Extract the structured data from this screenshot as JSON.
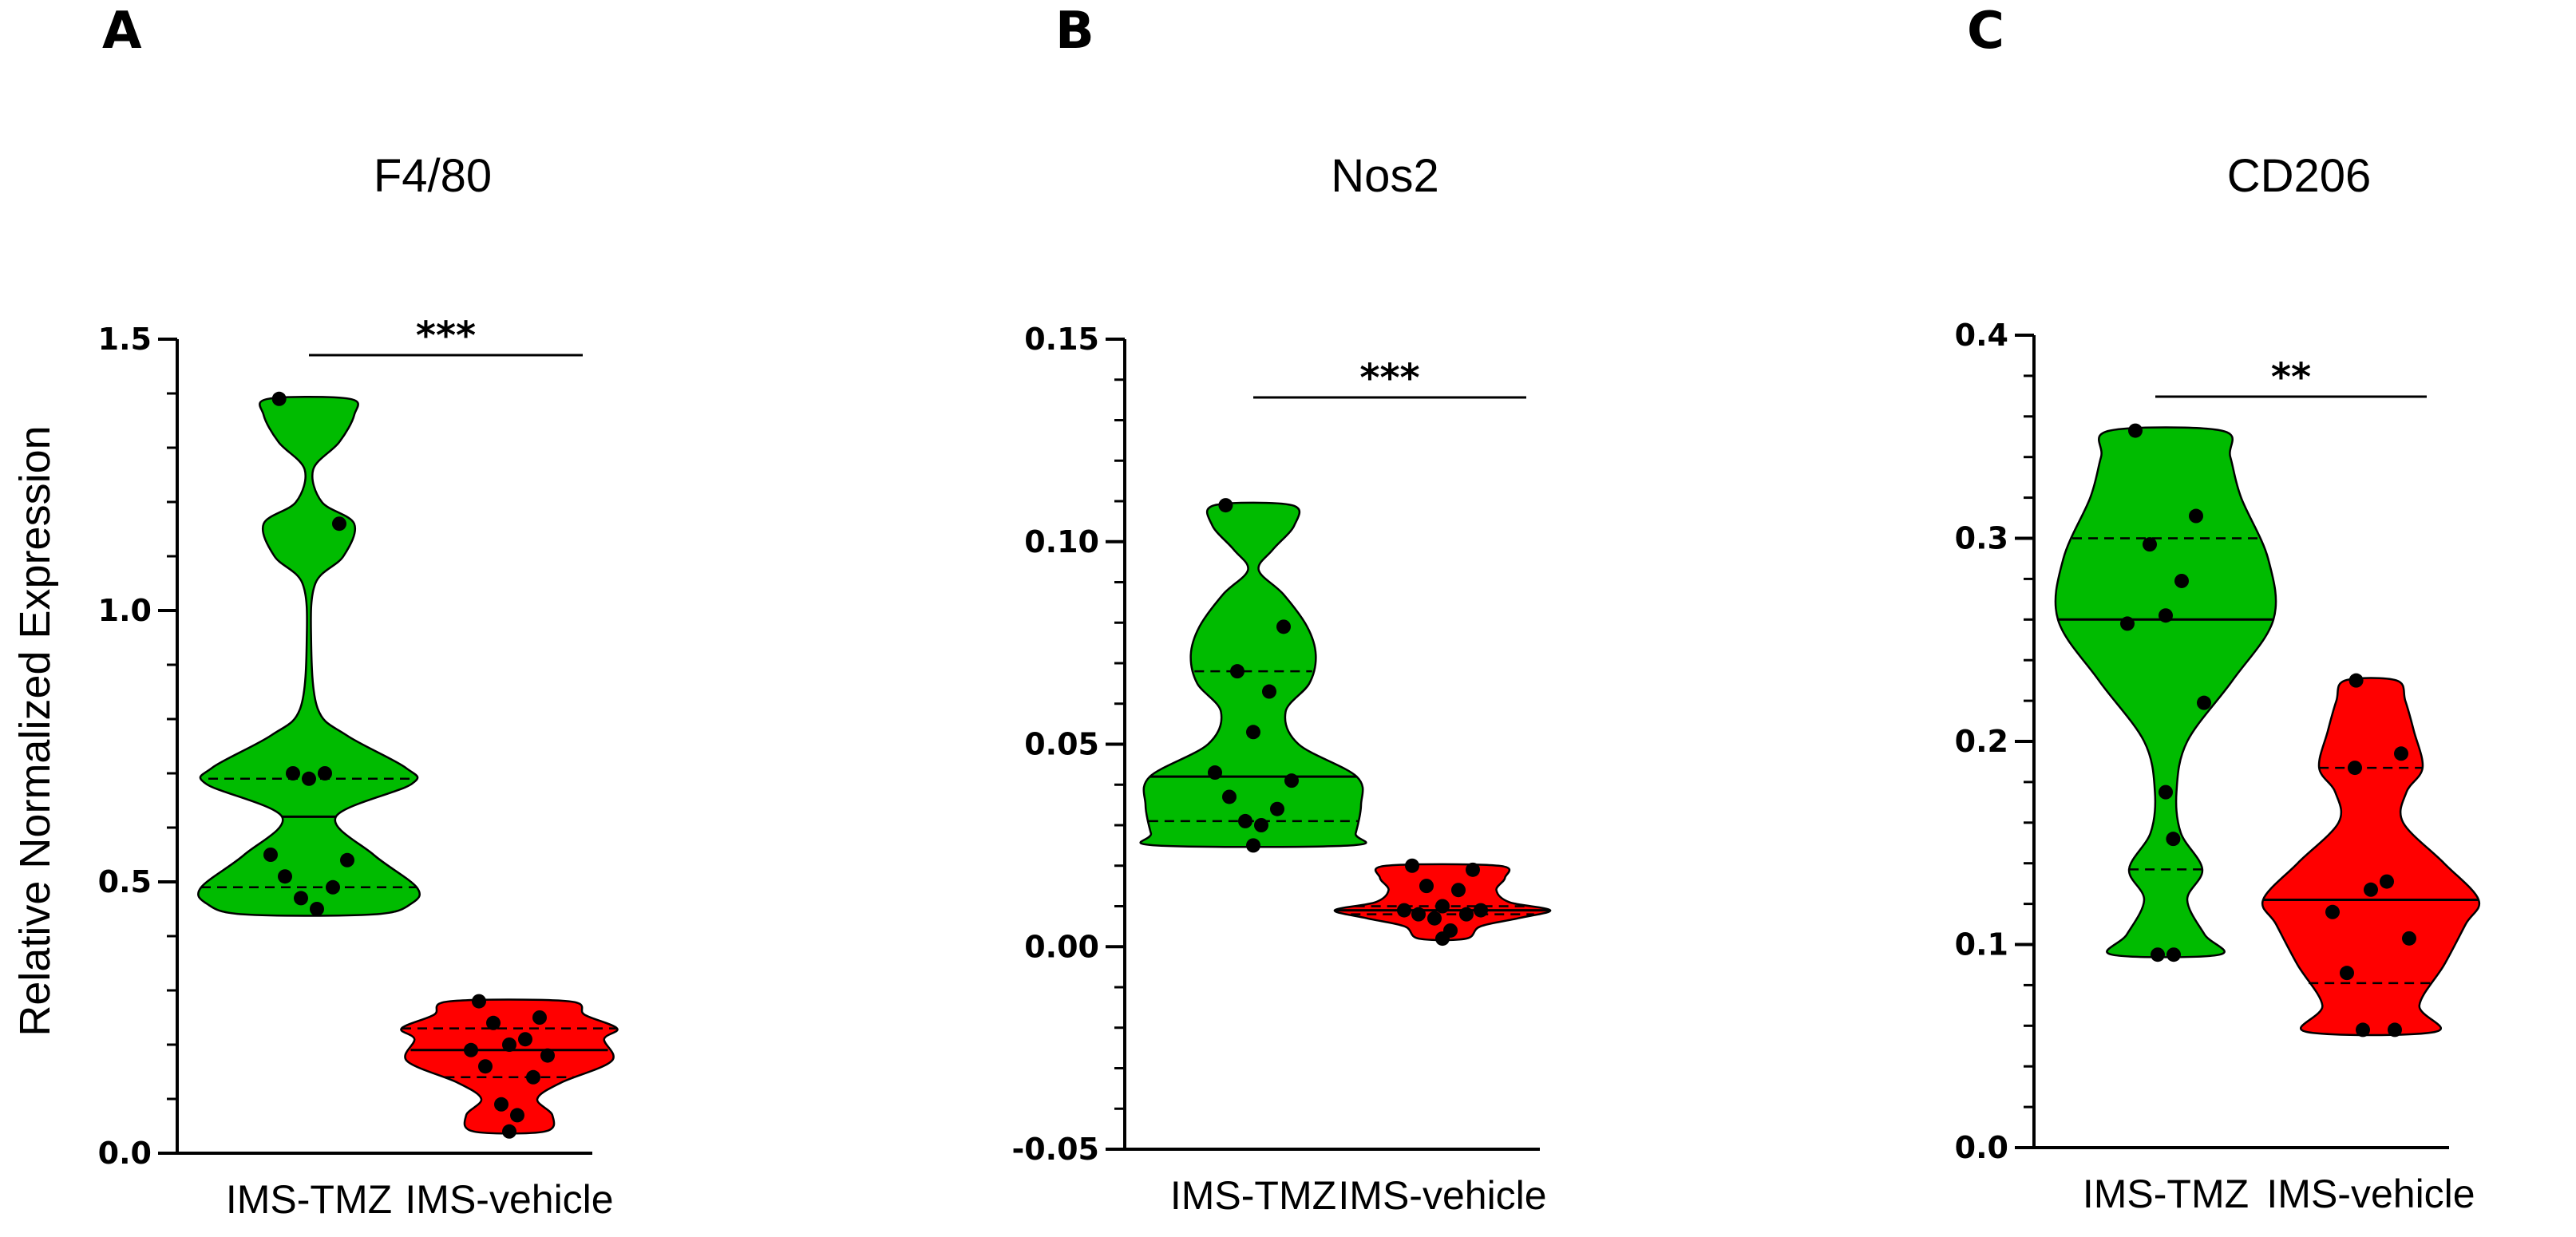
{
  "chart_data": [
    {
      "type": "violin",
      "panel": "A",
      "title": "F4/80",
      "ylabel": "Relative Normalized Expression",
      "ylim": [
        0.0,
        1.5
      ],
      "yticks": [
        "0.0",
        "0.5",
        "1.0",
        "1.5"
      ],
      "categories": [
        "IMS-TMZ",
        "IMS-vehicle"
      ],
      "significance": "***",
      "colors": {
        "IMS-TMZ": "#00bb00",
        "IMS-vehicle": "#ff0000"
      },
      "series": [
        {
          "name": "IMS-TMZ",
          "median": 0.62,
          "q1": 0.49,
          "q3": 0.69,
          "points": [
            1.39,
            1.16,
            0.7,
            0.7,
            0.69,
            0.55,
            0.54,
            0.51,
            0.49,
            0.47,
            0.45
          ],
          "shape": [
            [
              0.44,
              0.6
            ],
            [
              0.46,
              0.95
            ],
            [
              0.49,
              1.0
            ],
            [
              0.55,
              0.6
            ],
            [
              0.62,
              0.25
            ],
            [
              0.68,
              0.95
            ],
            [
              0.71,
              0.9
            ],
            [
              0.77,
              0.35
            ],
            [
              0.82,
              0.08
            ],
            [
              0.95,
              0.02
            ],
            [
              1.05,
              0.06
            ],
            [
              1.1,
              0.32
            ],
            [
              1.16,
              0.42
            ],
            [
              1.2,
              0.12
            ],
            [
              1.26,
              0.04
            ],
            [
              1.31,
              0.28
            ],
            [
              1.36,
              0.42
            ],
            [
              1.39,
              0.38
            ]
          ]
        },
        {
          "name": "IMS-vehicle",
          "median": 0.19,
          "q1": 0.14,
          "q3": 0.23,
          "points": [
            0.28,
            0.25,
            0.24,
            0.21,
            0.2,
            0.19,
            0.18,
            0.16,
            0.14,
            0.09,
            0.07,
            0.04
          ],
          "shape": [
            [
              0.04,
              0.33
            ],
            [
              0.07,
              0.4
            ],
            [
              0.1,
              0.26
            ],
            [
              0.13,
              0.48
            ],
            [
              0.17,
              0.95
            ],
            [
              0.21,
              0.88
            ],
            [
              0.23,
              1.0
            ],
            [
              0.255,
              0.7
            ],
            [
              0.28,
              0.55
            ]
          ]
        }
      ]
    },
    {
      "type": "violin",
      "panel": "B",
      "title": "Nos2",
      "ylabel": "",
      "ylim": [
        -0.05,
        0.15
      ],
      "yticks": [
        "-0.05",
        "0.00",
        "0.05",
        "0.10",
        "0.15"
      ],
      "categories": [
        "IMS-TMZ",
        "IMS-vehicle"
      ],
      "significance": "***",
      "colors": {
        "IMS-TMZ": "#00bb00",
        "IMS-vehicle": "#ff0000"
      },
      "series": [
        {
          "name": "IMS-TMZ",
          "median": 0.042,
          "q1": 0.031,
          "q3": 0.068,
          "points": [
            0.109,
            0.079,
            0.068,
            0.063,
            0.053,
            0.043,
            0.041,
            0.037,
            0.034,
            0.031,
            0.03,
            0.025
          ],
          "shape": [
            [
              0.025,
              0.9
            ],
            [
              0.028,
              0.95
            ],
            [
              0.035,
              1.0
            ],
            [
              0.042,
              0.96
            ],
            [
              0.05,
              0.42
            ],
            [
              0.058,
              0.3
            ],
            [
              0.065,
              0.52
            ],
            [
              0.072,
              0.58
            ],
            [
              0.079,
              0.5
            ],
            [
              0.087,
              0.28
            ],
            [
              0.093,
              0.05
            ],
            [
              0.098,
              0.18
            ],
            [
              0.104,
              0.38
            ],
            [
              0.109,
              0.36
            ]
          ]
        },
        {
          "name": "IMS-vehicle",
          "median": 0.009,
          "q1": 0.008,
          "q3": 0.01,
          "points": [
            0.02,
            0.019,
            0.015,
            0.014,
            0.01,
            0.009,
            0.009,
            0.008,
            0.008,
            0.007,
            0.004,
            0.002
          ],
          "shape": [
            [
              0.002,
              0.22
            ],
            [
              0.005,
              0.35
            ],
            [
              0.007,
              0.7
            ],
            [
              0.009,
              1.0
            ],
            [
              0.011,
              0.62
            ],
            [
              0.014,
              0.5
            ],
            [
              0.017,
              0.58
            ],
            [
              0.02,
              0.52
            ]
          ]
        }
      ]
    },
    {
      "type": "violin",
      "panel": "C",
      "title": "CD206",
      "ylabel": "",
      "ylim": [
        0.0,
        0.4
      ],
      "yticks": [
        "0.0",
        "0.1",
        "0.2",
        "0.3",
        "0.4"
      ],
      "categories": [
        "IMS-TMZ",
        "IMS-vehicle"
      ],
      "significance": "**",
      "colors": {
        "IMS-TMZ": "#00bb00",
        "IMS-vehicle": "#ff0000"
      },
      "series": [
        {
          "name": "IMS-TMZ",
          "median": 0.26,
          "q1": 0.137,
          "q3": 0.3,
          "points": [
            0.353,
            0.311,
            0.297,
            0.279,
            0.262,
            0.258,
            0.219,
            0.175,
            0.152,
            0.095,
            0.095
          ],
          "shape": [
            [
              0.095,
              0.5
            ],
            [
              0.105,
              0.36
            ],
            [
              0.122,
              0.2
            ],
            [
              0.137,
              0.34
            ],
            [
              0.155,
              0.14
            ],
            [
              0.175,
              0.1
            ],
            [
              0.2,
              0.2
            ],
            [
              0.23,
              0.62
            ],
            [
              0.26,
              1.0
            ],
            [
              0.29,
              0.95
            ],
            [
              0.32,
              0.7
            ],
            [
              0.34,
              0.6
            ],
            [
              0.353,
              0.52
            ]
          ]
        },
        {
          "name": "IMS-vehicle",
          "median": 0.122,
          "q1": 0.081,
          "q3": 0.187,
          "points": [
            0.23,
            0.194,
            0.187,
            0.131,
            0.127,
            0.116,
            0.103,
            0.086,
            0.058,
            0.058
          ],
          "shape": [
            [
              0.057,
              0.6
            ],
            [
              0.07,
              0.45
            ],
            [
              0.09,
              0.68
            ],
            [
              0.11,
              0.88
            ],
            [
              0.122,
              1.0
            ],
            [
              0.14,
              0.68
            ],
            [
              0.16,
              0.3
            ],
            [
              0.175,
              0.33
            ],
            [
              0.187,
              0.48
            ],
            [
              0.205,
              0.4
            ],
            [
              0.22,
              0.32
            ],
            [
              0.23,
              0.24
            ]
          ]
        }
      ]
    }
  ]
}
